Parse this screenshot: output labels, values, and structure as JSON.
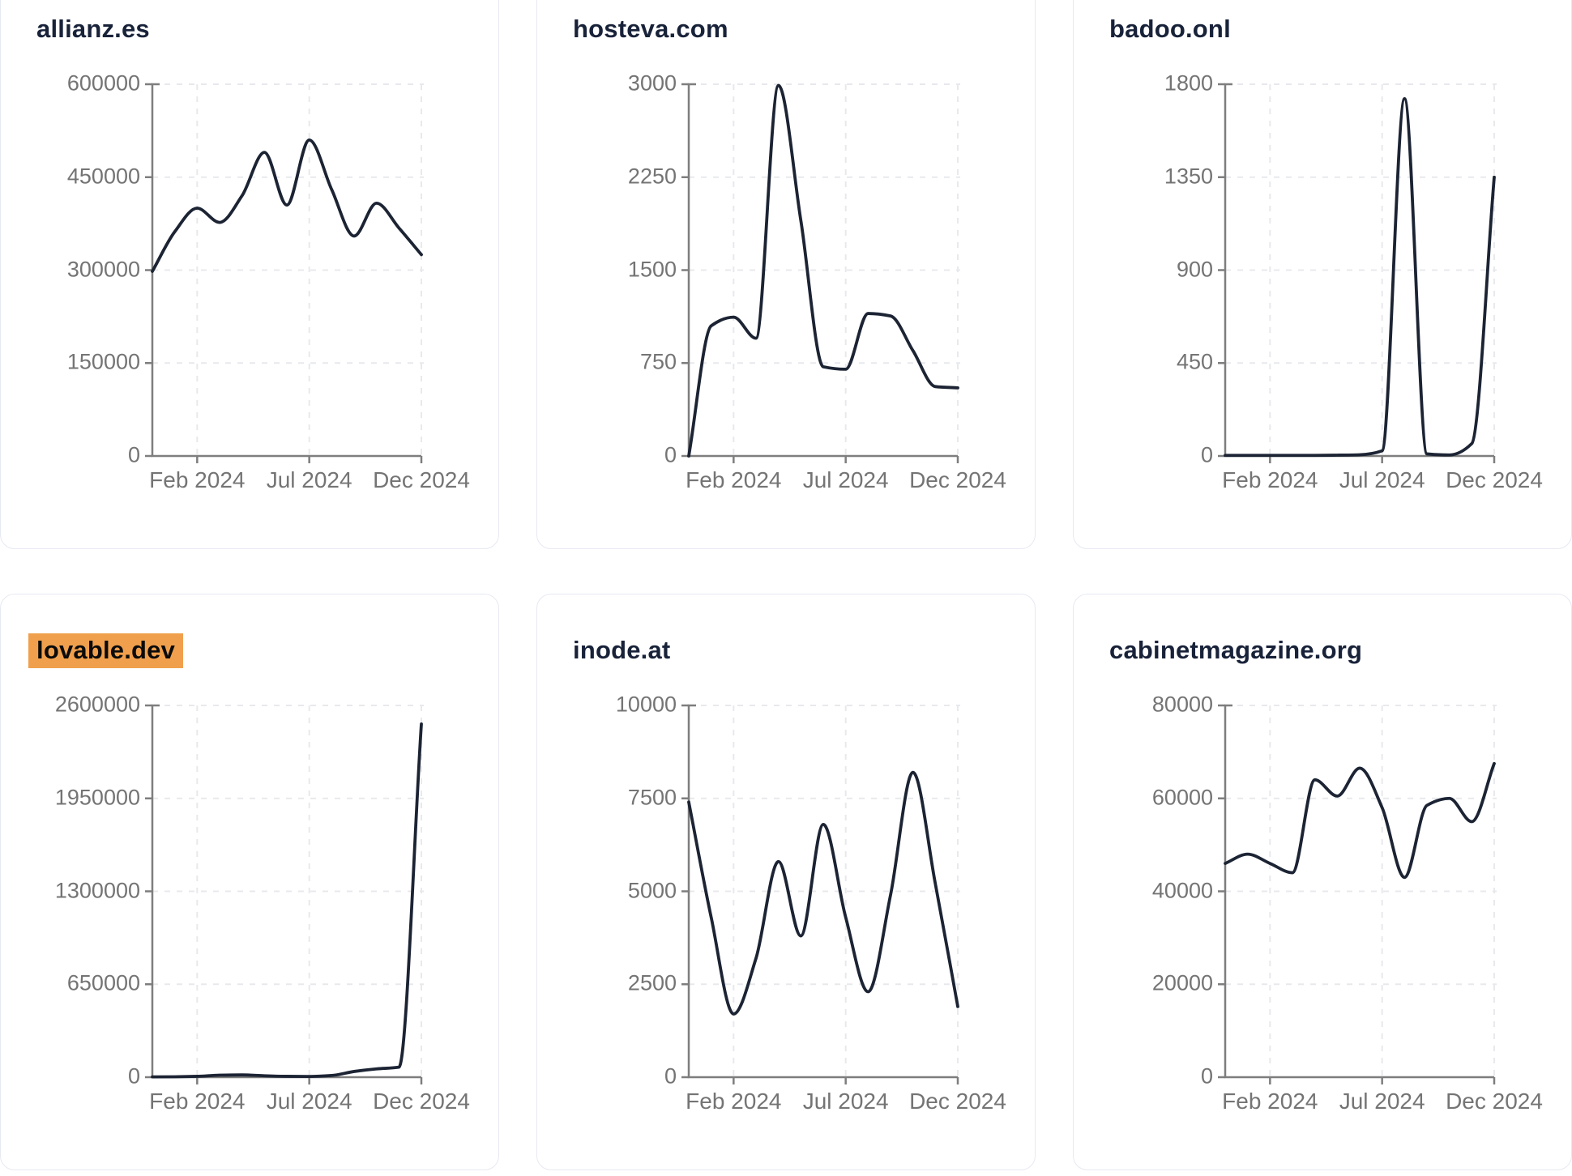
{
  "styles": {
    "line_color": "#1c2434",
    "title_color": "#182239",
    "highlight_color": "#f0a04d",
    "axis_color": "#7e7e7e",
    "tick_label_color": "#747474",
    "grid_color": "#e8e9ed",
    "card_border_color": "#e7e9f2",
    "page_background": "#ffffff"
  },
  "x_tick_labels": [
    "Feb 2024",
    "Jul 2024",
    "Dec 2024"
  ],
  "chart_data": [
    {
      "type": "line",
      "title": "allianz.es",
      "title_highlighted": false,
      "x": [
        "Dec 2023",
        "Jan 2024",
        "Feb 2024",
        "Mar 2024",
        "Apr 2024",
        "May 2024",
        "Jun 2024",
        "Jul 2024",
        "Aug 2024",
        "Sep 2024",
        "Oct 2024",
        "Nov 2024",
        "Dec 2024"
      ],
      "values": [
        298000,
        362000,
        400000,
        377000,
        420000,
        490000,
        405000,
        510000,
        430000,
        355000,
        408000,
        368000,
        325000
      ],
      "ylim": [
        0,
        600000
      ],
      "yticks": [
        600000,
        450000,
        300000,
        150000,
        0
      ],
      "x_ticks_shown": [
        "Feb 2024",
        "Jul 2024",
        "Dec 2024"
      ],
      "grid": true,
      "legend": "none"
    },
    {
      "type": "line",
      "title": "hosteva.com",
      "title_highlighted": false,
      "x": [
        "Dec 2023",
        "Jan 2024",
        "Feb 2024",
        "Mar 2024",
        "Apr 2024",
        "May 2024",
        "Jun 2024",
        "Jul 2024",
        "Aug 2024",
        "Sep 2024",
        "Oct 2024",
        "Nov 2024",
        "Dec 2024"
      ],
      "values": [
        0,
        1050,
        1120,
        950,
        2990,
        1900,
        720,
        700,
        1150,
        1130,
        850,
        560,
        550
      ],
      "ylim": [
        0,
        3000
      ],
      "yticks": [
        3000,
        2250,
        1500,
        750,
        0
      ],
      "x_ticks_shown": [
        "Feb 2024",
        "Jul 2024",
        "Dec 2024"
      ],
      "grid": true,
      "legend": "none"
    },
    {
      "type": "line",
      "title": "badoo.onl",
      "title_highlighted": false,
      "x": [
        "Dec 2023",
        "Jan 2024",
        "Feb 2024",
        "Mar 2024",
        "Apr 2024",
        "May 2024",
        "Jun 2024",
        "Jul 2024",
        "Aug 2024",
        "Sep 2024",
        "Oct 2024",
        "Nov 2024",
        "Dec 2024"
      ],
      "values": [
        3,
        3,
        3,
        3,
        3,
        4,
        6,
        25,
        1730,
        10,
        5,
        60,
        1350
      ],
      "ylim": [
        0,
        1800
      ],
      "yticks": [
        1800,
        1350,
        900,
        450,
        0
      ],
      "x_ticks_shown": [
        "Feb 2024",
        "Jul 2024",
        "Dec 2024"
      ],
      "grid": true,
      "legend": "none"
    },
    {
      "type": "line",
      "title": "lovable.dev",
      "title_highlighted": true,
      "x": [
        "Dec 2023",
        "Jan 2024",
        "Feb 2024",
        "Mar 2024",
        "Apr 2024",
        "May 2024",
        "Jun 2024",
        "Jul 2024",
        "Aug 2024",
        "Sep 2024",
        "Oct 2024",
        "Nov 2024",
        "Dec 2024"
      ],
      "values": [
        2000,
        3000,
        6000,
        14000,
        16000,
        10000,
        6000,
        5000,
        12000,
        40000,
        58000,
        70000,
        2470000
      ],
      "ylim": [
        0,
        2600000
      ],
      "yticks": [
        2600000,
        1950000,
        1300000,
        650000,
        0
      ],
      "x_ticks_shown": [
        "Feb 2024",
        "Jul 2024",
        "Dec 2024"
      ],
      "grid": true,
      "legend": "none"
    },
    {
      "type": "line",
      "title": "inode.at",
      "title_highlighted": false,
      "x": [
        "Dec 2023",
        "Jan 2024",
        "Feb 2024",
        "Mar 2024",
        "Apr 2024",
        "May 2024",
        "Jun 2024",
        "Jul 2024",
        "Aug 2024",
        "Sep 2024",
        "Oct 2024",
        "Nov 2024",
        "Dec 2024"
      ],
      "values": [
        7400,
        4300,
        1700,
        3200,
        5800,
        3800,
        6800,
        4300,
        2300,
        4900,
        8200,
        5200,
        1900
      ],
      "ylim": [
        0,
        10000
      ],
      "yticks": [
        10000,
        7500,
        5000,
        2500,
        0
      ],
      "x_ticks_shown": [
        "Feb 2024",
        "Jul 2024",
        "Dec 2024"
      ],
      "grid": true,
      "legend": "none"
    },
    {
      "type": "line",
      "title": "cabinetmagazine.org",
      "title_highlighted": false,
      "x": [
        "Dec 2023",
        "Jan 2024",
        "Feb 2024",
        "Mar 2024",
        "Apr 2024",
        "May 2024",
        "Jun 2024",
        "Jul 2024",
        "Aug 2024",
        "Sep 2024",
        "Oct 2024",
        "Nov 2024",
        "Dec 2024"
      ],
      "values": [
        46000,
        48000,
        46000,
        44000,
        64000,
        60500,
        66500,
        58000,
        43000,
        58500,
        60000,
        55000,
        67500
      ],
      "ylim": [
        0,
        80000
      ],
      "yticks": [
        80000,
        60000,
        40000,
        20000,
        0
      ],
      "x_ticks_shown": [
        "Feb 2024",
        "Jul 2024",
        "Dec 2024"
      ],
      "grid": true,
      "legend": "none"
    }
  ]
}
